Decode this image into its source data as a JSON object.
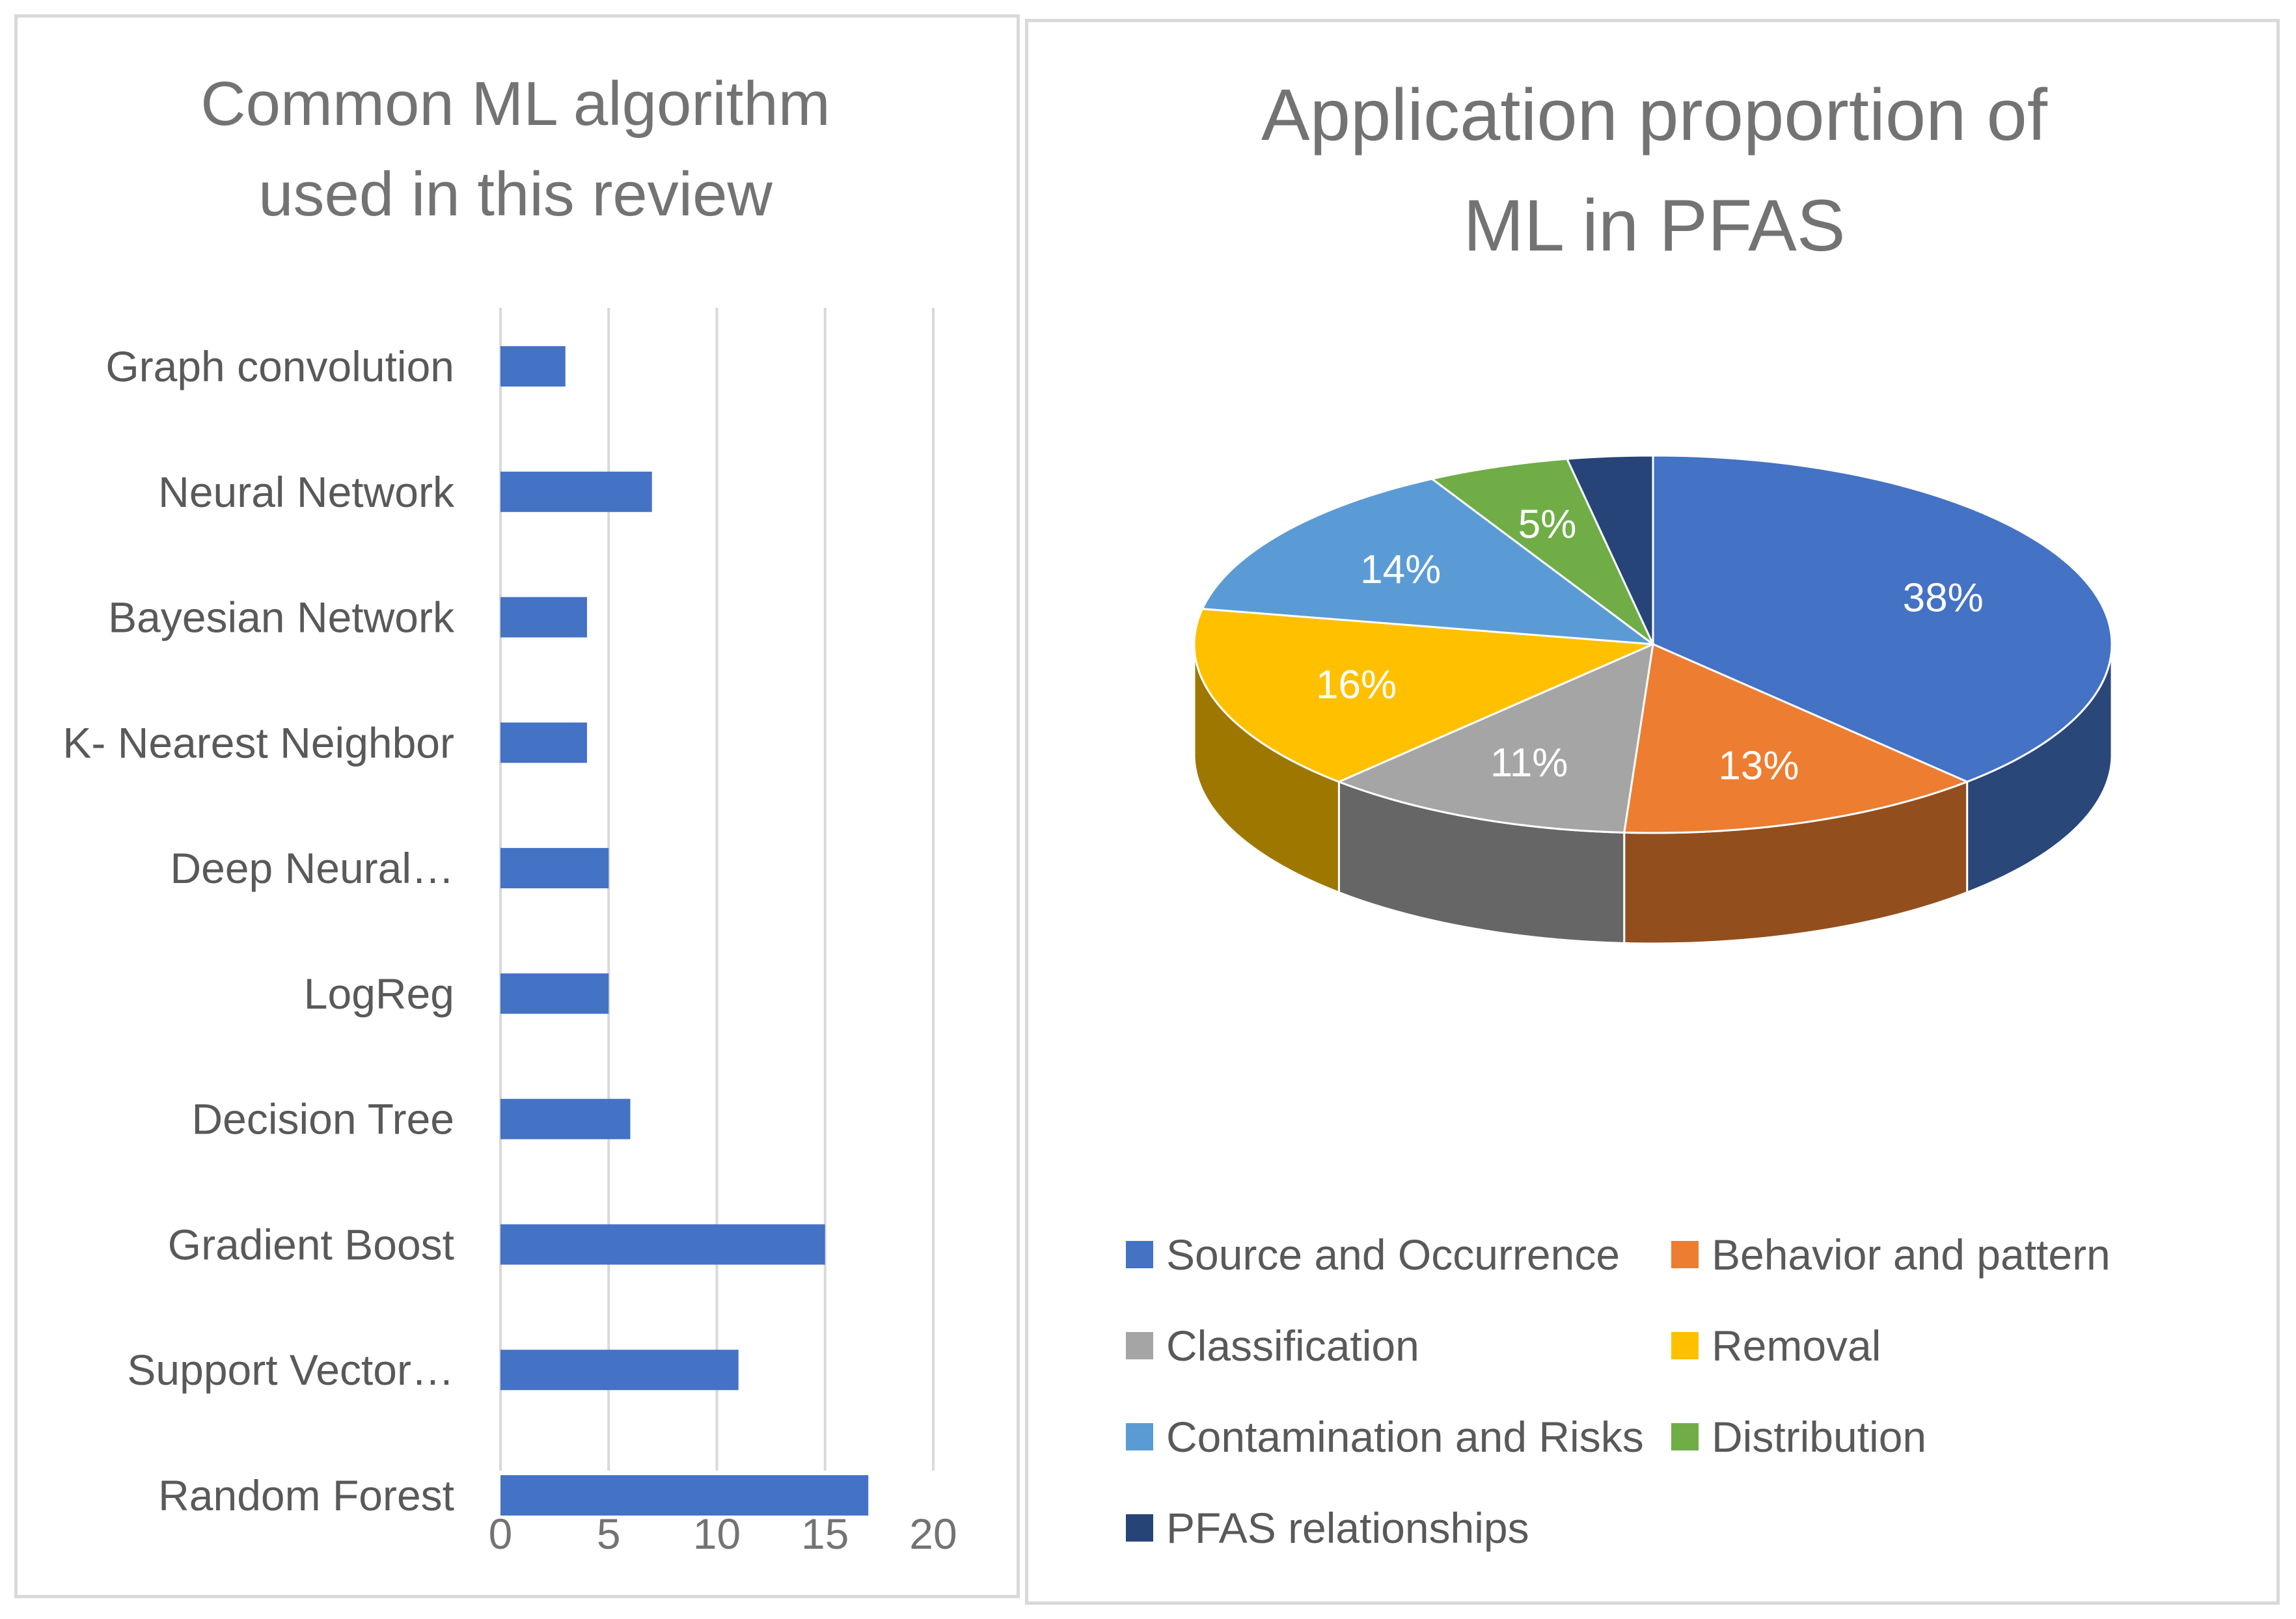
{
  "chart_data": [
    {
      "type": "bar",
      "orientation": "horizontal",
      "title_lines": [
        "Common ML algorithm",
        "used in this review"
      ],
      "categories": [
        "Graph convolution",
        "Neural Network",
        "Bayesian Network",
        "K- Nearest Neighbor",
        "Deep Neural…",
        "LogReg",
        "Decision Tree",
        "Gradient Boost",
        "Support Vector…",
        "Random Forest"
      ],
      "values": [
        3,
        7,
        4,
        4,
        5,
        5,
        6,
        15,
        11,
        17
      ],
      "xlim": [
        0,
        20
      ],
      "xticks": [
        "0",
        "5",
        "10",
        "15",
        "20"
      ],
      "grid": true,
      "color": "#4472c4"
    },
    {
      "type": "pie",
      "style": "3d",
      "title_lines": [
        "Application proportion of",
        "ML in PFAS"
      ],
      "slices": [
        {
          "name": "Source and Occurrence",
          "value": 38,
          "label": "38%",
          "color": "#4472c4"
        },
        {
          "name": "Behavior and pattern",
          "value": 13,
          "label": "13%",
          "color": "#ed7d31"
        },
        {
          "name": "Classification",
          "value": 11,
          "label": "11%",
          "color": "#a5a5a5"
        },
        {
          "name": "Removal",
          "value": 16,
          "label": "16%",
          "color": "#ffc000"
        },
        {
          "name": "Contamination and Risks",
          "value": 14,
          "label": "14%",
          "color": "#5b9bd5"
        },
        {
          "name": "Distribution",
          "value": 5,
          "label": "5%",
          "color": "#70ad47"
        },
        {
          "name": "PFAS relationships",
          "value": 3,
          "label": "",
          "color": "#264478"
        }
      ],
      "legend_position": "bottom"
    }
  ]
}
